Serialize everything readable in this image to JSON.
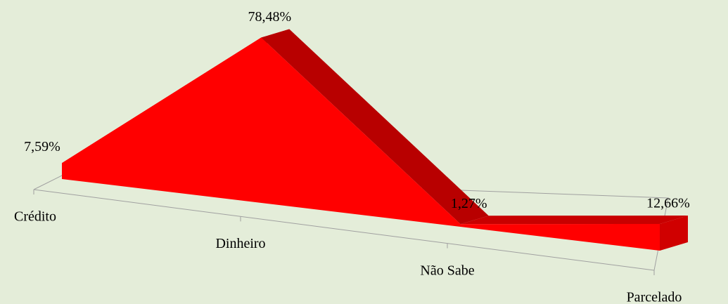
{
  "chart_data": {
    "type": "area3d",
    "categories": [
      "Crédito",
      "Dinheiro",
      "Não Sabe",
      "Parcelado"
    ],
    "values": [
      7.59,
      78.48,
      1.27,
      12.66
    ],
    "value_labels": [
      "7,59%",
      "78,48%",
      "1,27%",
      "12,66%"
    ],
    "color": "#ff0000"
  }
}
